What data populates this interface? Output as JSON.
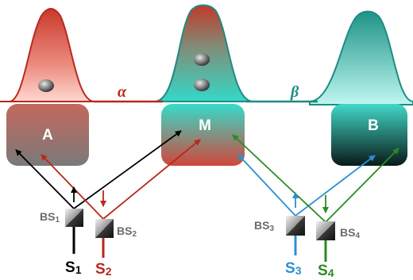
{
  "colors": {
    "red": "#b8291c",
    "teal": "#1e8c82",
    "black": "#000000",
    "blue": "#2b8fd6",
    "green": "#2a8a22",
    "bs_label": "#6b6b6b"
  },
  "labels": {
    "box_a": "A",
    "box_m": "M",
    "box_b": "B",
    "alpha": "α",
    "beta": "β"
  },
  "beam_splitters": [
    {
      "id": "bs1",
      "label_main": "BS",
      "label_sub": "1"
    },
    {
      "id": "bs2",
      "label_main": "BS",
      "label_sub": "2"
    },
    {
      "id": "bs3",
      "label_main": "BS",
      "label_sub": "3"
    },
    {
      "id": "bs4",
      "label_main": "BS",
      "label_sub": "4"
    }
  ],
  "sources": [
    {
      "id": "s1",
      "label_main": "S",
      "label_sub": "1",
      "color": "#000000"
    },
    {
      "id": "s2",
      "label_main": "S",
      "label_sub": "2",
      "color": "#b8291c"
    },
    {
      "id": "s3",
      "label_main": "S",
      "label_sub": "3",
      "color": "#2b8fd6"
    },
    {
      "id": "s4",
      "label_main": "S",
      "label_sub": "4",
      "color": "#2a8a22"
    }
  ]
}
